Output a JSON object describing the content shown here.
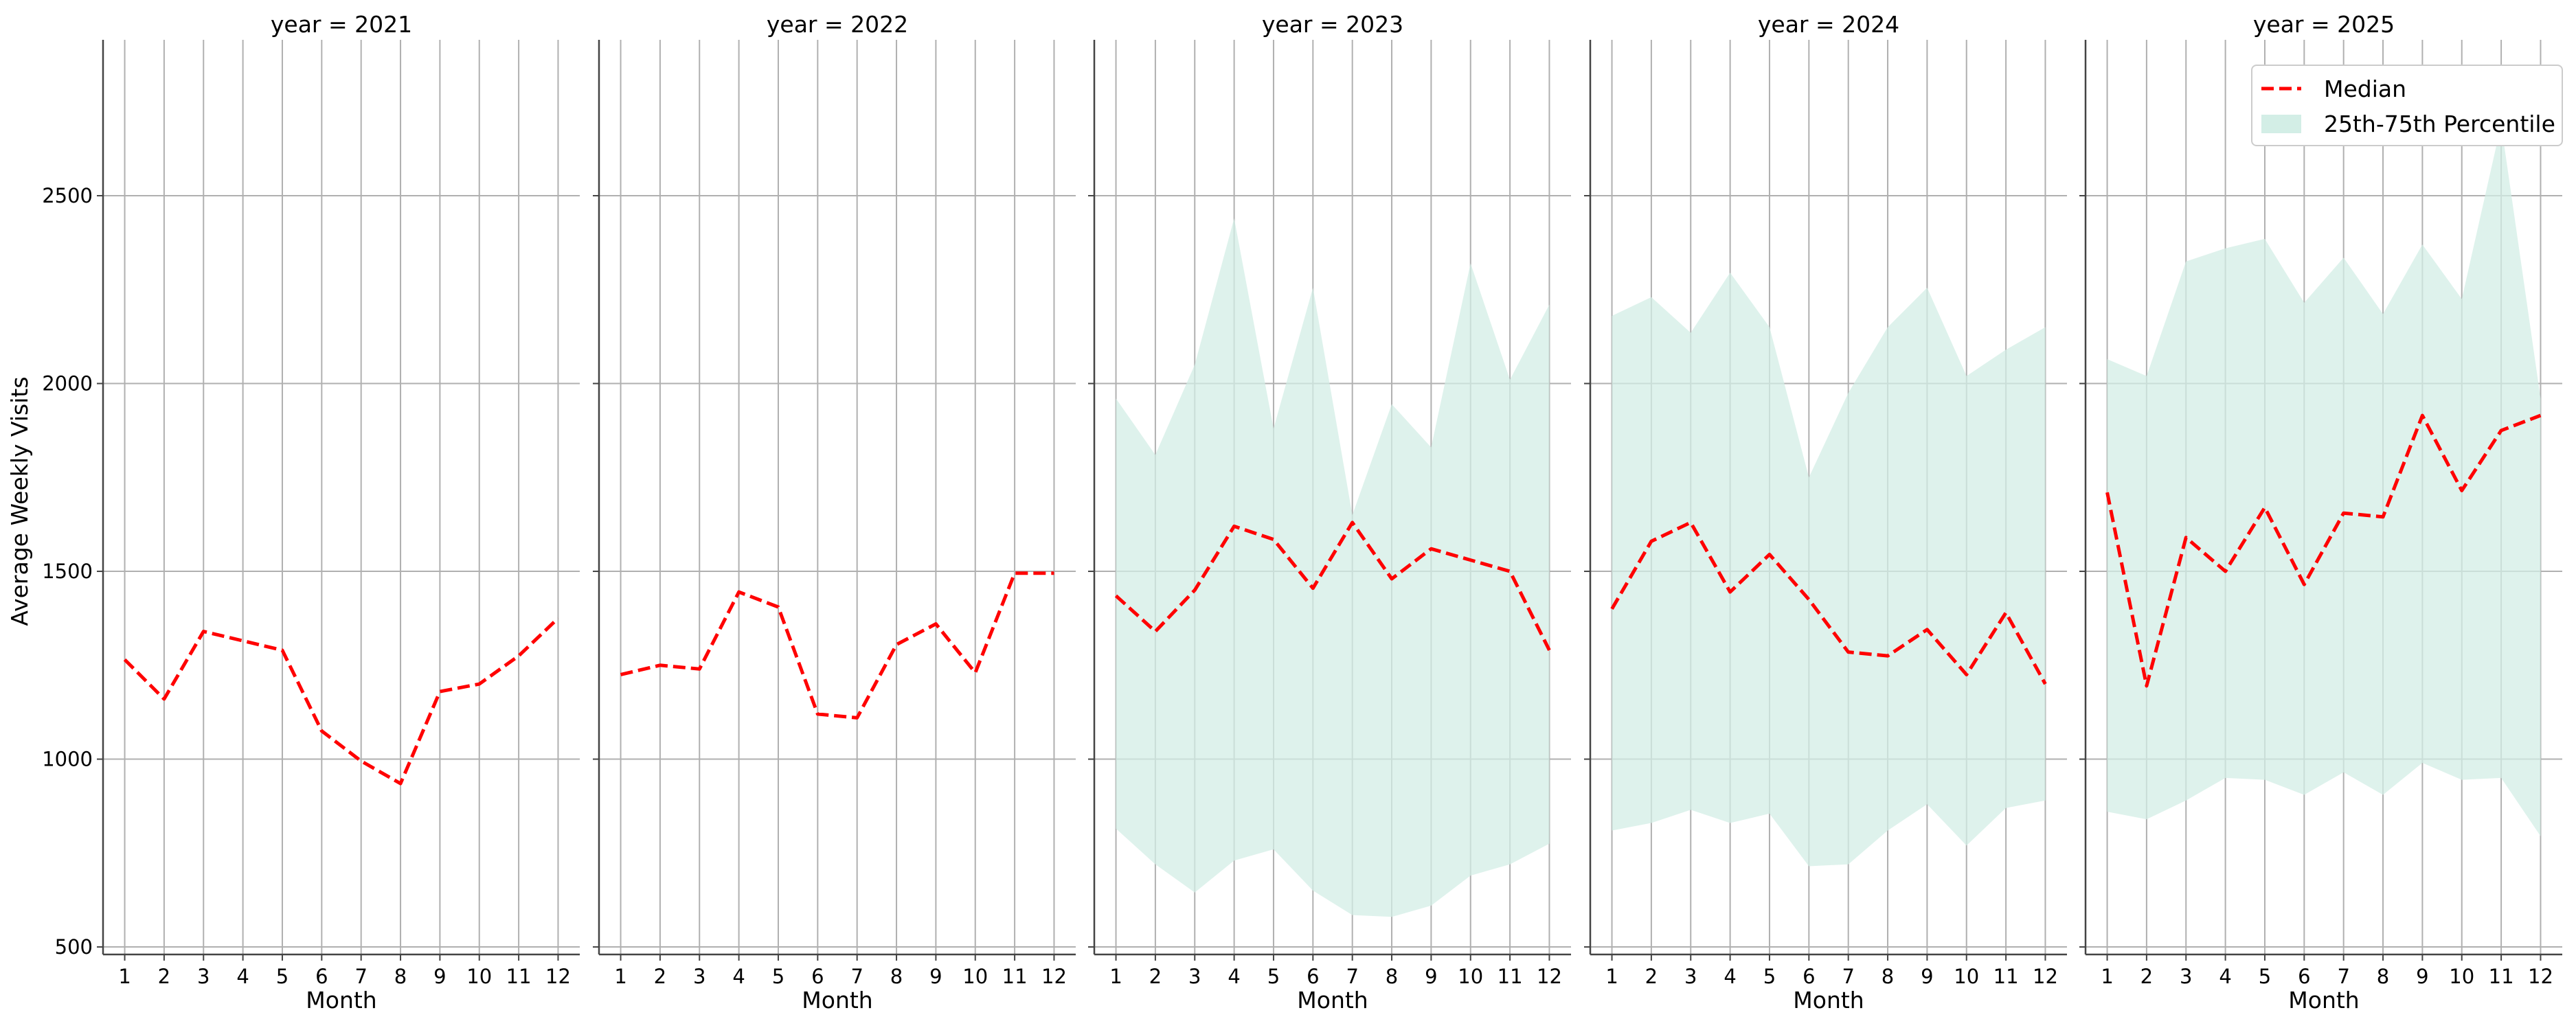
{
  "chart_data": {
    "type": "line",
    "facet_prefix": "year = ",
    "xlabel": "Month",
    "ylabel": "Average Weekly Visits",
    "ylim": [
      480,
      2915
    ],
    "xlim": [
      0.45,
      12.55
    ],
    "x": [
      1,
      2,
      3,
      4,
      5,
      6,
      7,
      8,
      9,
      10,
      11,
      12
    ],
    "x_ticks": [
      1,
      2,
      3,
      4,
      5,
      6,
      7,
      8,
      9,
      10,
      11,
      12
    ],
    "y_ticks": [
      500,
      1000,
      1500,
      2000,
      2500
    ],
    "grid": true,
    "legend_position": "upper right of last panel",
    "colors": {
      "median": "#ff0000",
      "band": "#d3eee6",
      "grid": "#b0b0b0"
    },
    "legend": [
      {
        "label": "Median",
        "kind": "dashed-line",
        "color": "#ff0000"
      },
      {
        "label": "25th-75th Percentile",
        "kind": "filled-band",
        "color": "#d3eee6"
      }
    ],
    "panels": [
      {
        "year": "2021",
        "median": [
          1265,
          1160,
          1340,
          1315,
          1290,
          1075,
          995,
          935,
          1180,
          1200,
          1275,
          1375
        ],
        "p25": null,
        "p75": null
      },
      {
        "year": "2022",
        "median": [
          1225,
          1250,
          1240,
          1445,
          1405,
          1120,
          1110,
          1305,
          1360,
          1230,
          1495,
          1495
        ],
        "p25": null,
        "p75": null
      },
      {
        "year": "2023",
        "median": [
          1435,
          1340,
          1450,
          1620,
          1585,
          1455,
          1630,
          1480,
          1560,
          1530,
          1500,
          1290
        ],
        "p25": [
          815,
          720,
          645,
          730,
          760,
          650,
          585,
          580,
          610,
          690,
          720,
          775
        ],
        "p75": [
          1960,
          1810,
          2050,
          2440,
          1880,
          2255,
          1650,
          1945,
          1830,
          2320,
          2010,
          2210
        ]
      },
      {
        "year": "2024",
        "median": [
          1400,
          1580,
          1630,
          1445,
          1545,
          1425,
          1285,
          1275,
          1345,
          1225,
          1390,
          1200
        ],
        "p25": [
          810,
          830,
          865,
          830,
          855,
          715,
          720,
          810,
          880,
          770,
          870,
          890
        ],
        "p75": [
          2180,
          2230,
          2135,
          2295,
          2150,
          1750,
          1975,
          2150,
          2255,
          2020,
          2090,
          2150
        ]
      },
      {
        "year": "2025",
        "median": [
          1710,
          1195,
          1590,
          1500,
          1670,
          1465,
          1655,
          1645,
          1915,
          1715,
          1875,
          1915
        ],
        "p25": [
          860,
          840,
          890,
          950,
          945,
          905,
          965,
          905,
          990,
          945,
          950,
          795
        ],
        "p75": [
          2065,
          2020,
          2325,
          2360,
          2385,
          2215,
          2335,
          2185,
          2370,
          2225,
          2690,
          1960
        ]
      }
    ]
  }
}
